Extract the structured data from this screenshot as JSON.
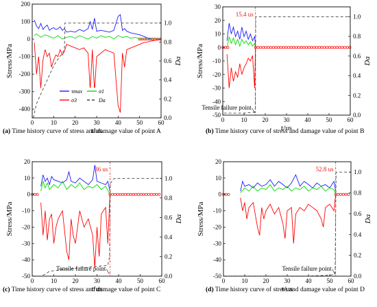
{
  "colors": {
    "tau": "#1a1aff",
    "sigma1": "#00dd00",
    "sigma3": "#ff0000",
    "damage": "#444444",
    "marker": "#ff0000"
  },
  "legend": {
    "tau_label": "τmax",
    "sigma1_label": "σ1",
    "sigma3_label": "σ3",
    "damage_label": "Da"
  },
  "chart_data": [
    {
      "type": "line",
      "panel": "a",
      "caption_tag": "(a)",
      "caption": " Time history curve of stress and damage value of point A",
      "xlabel": "t/us",
      "ylabel": "Stress/MPa",
      "y2label": "Da",
      "xlim": [
        0,
        60
      ],
      "ylim": [
        -450,
        200
      ],
      "y2lim": [
        0,
        1.2
      ],
      "xticks": [
        0,
        10,
        20,
        30,
        40,
        50,
        60
      ],
      "yticks": [
        -400,
        -300,
        -200,
        -100,
        0,
        100,
        200
      ],
      "y2ticks": [
        0.0,
        0.2,
        0.4,
        0.6,
        0.8,
        1.0
      ],
      "failure_time": null,
      "failure_label": "",
      "failure_point_label": "",
      "series": [
        {
          "name": "τmax",
          "key": "tau",
          "x": [
            1,
            2,
            3,
            4,
            5,
            6,
            7,
            8,
            9,
            10,
            11,
            12,
            13,
            14,
            15,
            16,
            18,
            20,
            22,
            24,
            26,
            27,
            28,
            29,
            30,
            32,
            34,
            36,
            38,
            40,
            41,
            42,
            43,
            44,
            46,
            48,
            50,
            52,
            54,
            56,
            58,
            60
          ],
          "y": [
            110,
            75,
            60,
            90,
            55,
            70,
            80,
            50,
            60,
            65,
            55,
            60,
            70,
            50,
            60,
            40,
            45,
            40,
            55,
            45,
            60,
            100,
            55,
            120,
            45,
            50,
            45,
            40,
            50,
            130,
            140,
            50,
            60,
            45,
            35,
            30,
            25,
            15,
            5,
            0,
            0,
            0
          ]
        },
        {
          "name": "σ1",
          "key": "sigma1",
          "x": [
            1,
            2,
            4,
            6,
            8,
            10,
            12,
            14,
            16,
            18,
            20,
            22,
            24,
            26,
            28,
            30,
            32,
            34,
            36,
            38,
            40,
            42,
            44,
            46,
            48,
            50,
            52,
            54,
            56,
            58,
            60
          ],
          "y": [
            20,
            30,
            10,
            25,
            15,
            5,
            20,
            0,
            10,
            15,
            5,
            20,
            10,
            0,
            15,
            5,
            20,
            10,
            15,
            0,
            20,
            10,
            15,
            5,
            10,
            0,
            0,
            0,
            0,
            0,
            0
          ]
        },
        {
          "name": "σ3",
          "key": "sigma3",
          "x": [
            1,
            2,
            3,
            4,
            5,
            6,
            7,
            8,
            9,
            10,
            11,
            12,
            13,
            14,
            15,
            16,
            18,
            20,
            22,
            24,
            26,
            27,
            28,
            29,
            30,
            32,
            34,
            36,
            38,
            40,
            41,
            42,
            43,
            44,
            46,
            48,
            50,
            52,
            54,
            56,
            58,
            60
          ],
          "y": [
            -20,
            -200,
            -100,
            -280,
            -120,
            -60,
            -100,
            -80,
            -160,
            -120,
            -90,
            -100,
            -60,
            -90,
            -70,
            -30,
            -40,
            -50,
            -60,
            -50,
            -80,
            -290,
            -60,
            -300,
            -100,
            -80,
            -60,
            -70,
            -80,
            -380,
            -420,
            -80,
            -160,
            -60,
            -50,
            -40,
            -30,
            -20,
            -15,
            -10,
            -5,
            0
          ]
        },
        {
          "name": "Da",
          "key": "damage",
          "axis": "y2",
          "x": [
            0.5,
            2,
            4,
            6,
            8,
            10,
            12,
            14,
            15,
            15.2,
            16,
            20,
            30,
            40,
            50,
            55,
            60
          ],
          "y": [
            0,
            0.15,
            0.25,
            0.35,
            0.45,
            0.55,
            0.62,
            0.68,
            0.72,
            1.0,
            1.0,
            1.0,
            1.0,
            1.0,
            1.0,
            1.0,
            1.0
          ]
        }
      ]
    },
    {
      "type": "line",
      "panel": "b",
      "caption_tag": "(b)",
      "caption": " Time history curve of stress and damage value of point B",
      "xlabel": "t/us",
      "ylabel": "Stress/MPa",
      "y2label": "Da",
      "xlim": [
        0,
        60
      ],
      "ylim": [
        -50,
        30
      ],
      "y2lim": [
        0,
        1.1
      ],
      "xticks": [
        0,
        10,
        20,
        30,
        40,
        50,
        60
      ],
      "yticks": [
        -50,
        -40,
        -30,
        -20,
        -10,
        0,
        10,
        20,
        30
      ],
      "y2ticks": [
        0.0,
        0.2,
        0.4,
        0.6,
        0.8,
        1.0
      ],
      "failure_time": 15.4,
      "failure_label": "15.4 us",
      "failure_point_label": "Tensile failure point",
      "series": [
        {
          "name": "τmax",
          "key": "tau",
          "x": [
            2,
            3,
            4,
            5,
            6,
            7,
            8,
            9,
            10,
            11,
            12,
            13,
            14,
            15,
            15.4
          ],
          "y": [
            5,
            18,
            10,
            15,
            8,
            12,
            6,
            15,
            8,
            12,
            6,
            10,
            5,
            8,
            2
          ]
        },
        {
          "name": "σ1",
          "key": "sigma1",
          "x": [
            2,
            3,
            4,
            5,
            6,
            7,
            8,
            9,
            10,
            11,
            12,
            13,
            14,
            15,
            15.4
          ],
          "y": [
            0,
            8,
            3,
            7,
            2,
            6,
            1,
            6,
            3,
            5,
            2,
            4,
            1,
            3,
            0
          ]
        },
        {
          "name": "σ3",
          "key": "sigma3",
          "x": [
            2,
            3,
            4,
            5,
            6,
            7,
            8,
            9,
            10,
            11,
            12,
            13,
            14,
            15,
            15.4
          ],
          "y": [
            -5,
            -30,
            -15,
            -25,
            -18,
            -22,
            -12,
            -20,
            -15,
            -12,
            -8,
            -10,
            -6,
            -30,
            0
          ]
        },
        {
          "name": "Da",
          "key": "damage",
          "axis": "y2",
          "x": [
            0.5,
            10,
            15,
            15.3,
            15.5,
            20,
            30,
            40,
            50,
            60
          ],
          "y": [
            0.02,
            0.02,
            0.03,
            0.05,
            1.0,
            1.0,
            1.0,
            1.0,
            1.0,
            1.0
          ]
        }
      ]
    },
    {
      "type": "line",
      "panel": "c",
      "caption_tag": "(c)",
      "caption": " Time history curve of stress and damage value of point C",
      "xlabel": "t/us",
      "ylabel": "Stress/MPa",
      "y2label": "Da",
      "xlim": [
        0,
        60
      ],
      "ylim": [
        -50,
        20
      ],
      "y2lim": [
        0,
        1.17
      ],
      "xticks": [
        0,
        10,
        20,
        30,
        40,
        50,
        60
      ],
      "yticks": [
        -50,
        -40,
        -30,
        -20,
        -10,
        0,
        10,
        20
      ],
      "y2ticks": [
        0.0,
        0.2,
        0.4,
        0.6,
        0.8,
        1.0
      ],
      "failure_time": 36,
      "failure_label": "36 us",
      "failure_point_label": "Tensile failure point",
      "series": [
        {
          "name": "τmax",
          "key": "tau",
          "x": [
            4,
            5,
            6,
            7,
            8,
            9,
            10,
            12,
            14,
            16,
            17,
            18,
            20,
            22,
            24,
            26,
            28,
            29,
            30,
            32,
            34,
            35,
            36
          ],
          "y": [
            5,
            12,
            8,
            10,
            6,
            11,
            9,
            8,
            7,
            9,
            14,
            8,
            7,
            10,
            8,
            6,
            9,
            18,
            8,
            7,
            6,
            8,
            2
          ]
        },
        {
          "name": "σ1",
          "key": "sigma1",
          "x": [
            4,
            5,
            6,
            7,
            8,
            10,
            12,
            14,
            16,
            18,
            20,
            22,
            24,
            26,
            28,
            30,
            32,
            34,
            36
          ],
          "y": [
            2,
            8,
            4,
            7,
            3,
            6,
            4,
            8,
            3,
            6,
            4,
            7,
            3,
            5,
            4,
            6,
            3,
            5,
            0
          ]
        },
        {
          "name": "σ3",
          "key": "sigma3",
          "x": [
            4,
            5,
            6,
            7,
            8,
            9,
            10,
            11,
            12,
            14,
            16,
            17,
            18,
            19,
            20,
            22,
            24,
            26,
            28,
            29,
            30,
            31,
            32,
            34,
            35,
            36
          ],
          "y": [
            -5,
            -25,
            -10,
            -28,
            -15,
            -12,
            -30,
            -20,
            -15,
            -10,
            -35,
            -40,
            -15,
            -25,
            -30,
            -10,
            -20,
            -15,
            -25,
            -45,
            -20,
            -38,
            -12,
            -8,
            -30,
            0
          ]
        },
        {
          "name": "Da",
          "key": "damage",
          "axis": "y2",
          "x": [
            0.5,
            4,
            6,
            8,
            15,
            20,
            25,
            30,
            35,
            35.8,
            36.2,
            38,
            40,
            50,
            60
          ],
          "y": [
            0,
            0,
            0.02,
            0.05,
            0.07,
            0.08,
            0.09,
            0.1,
            0.11,
            0.2,
            0.95,
            1.0,
            1.0,
            1.0,
            1.0
          ]
        }
      ]
    },
    {
      "type": "line",
      "panel": "d",
      "caption_tag": "(d)",
      "caption": " Time history curve of stress and damage value of point D",
      "xlabel": "t/us",
      "ylabel": "Stress/MPa",
      "y2label": "Da",
      "xlim": [
        0,
        60
      ],
      "ylim": [
        -50,
        20
      ],
      "y2lim": [
        0,
        1.1
      ],
      "xticks": [
        0,
        10,
        20,
        30,
        40,
        50,
        60
      ],
      "yticks": [
        -50,
        -40,
        -30,
        -20,
        -10,
        0,
        10,
        20
      ],
      "y2ticks": [
        0.0,
        0.2,
        0.4,
        0.6,
        0.8,
        1.0
      ],
      "failure_time": 52.8,
      "failure_label": "52.8 us",
      "failure_point_label": "Tensile failure point",
      "series": [
        {
          "name": "τmax",
          "key": "tau",
          "x": [
            8,
            9,
            10,
            12,
            14,
            16,
            18,
            20,
            22,
            24,
            26,
            28,
            30,
            32,
            34,
            36,
            38,
            40,
            42,
            44,
            46,
            48,
            50,
            52,
            52.8
          ],
          "y": [
            2,
            8,
            5,
            6,
            4,
            7,
            5,
            6,
            9,
            5,
            8,
            6,
            4,
            7,
            12,
            5,
            8,
            6,
            4,
            7,
            5,
            6,
            4,
            8,
            2
          ]
        },
        {
          "name": "σ1",
          "key": "sigma1",
          "x": [
            8,
            10,
            12,
            14,
            16,
            18,
            20,
            22,
            24,
            26,
            28,
            30,
            32,
            34,
            36,
            38,
            40,
            42,
            44,
            46,
            48,
            50,
            52,
            52.8
          ],
          "y": [
            1,
            4,
            2,
            5,
            2,
            4,
            3,
            6,
            2,
            4,
            3,
            5,
            2,
            4,
            3,
            5,
            2,
            4,
            3,
            5,
            2,
            4,
            3,
            0
          ]
        },
        {
          "name": "σ3",
          "key": "sigma3",
          "x": [
            8,
            9,
            10,
            11,
            12,
            14,
            16,
            17,
            18,
            19,
            20,
            22,
            24,
            26,
            28,
            29,
            30,
            32,
            33,
            34,
            36,
            38,
            40,
            42,
            44,
            46,
            47,
            48,
            50,
            52,
            52.8
          ],
          "y": [
            -2,
            -10,
            -5,
            -15,
            -8,
            -5,
            -20,
            -25,
            -8,
            -15,
            -10,
            -6,
            -12,
            -8,
            -18,
            -27,
            -10,
            -8,
            -30,
            -12,
            -8,
            -10,
            -6,
            -8,
            -10,
            -15,
            -20,
            -8,
            -6,
            -10,
            0
          ]
        },
        {
          "name": "Da",
          "key": "damage",
          "axis": "y2",
          "x": [
            0.5,
            20,
            40,
            50,
            52.5,
            53,
            54,
            60
          ],
          "y": [
            0,
            0,
            0,
            0.01,
            0.02,
            1.0,
            1.0,
            1.0
          ]
        }
      ]
    }
  ]
}
